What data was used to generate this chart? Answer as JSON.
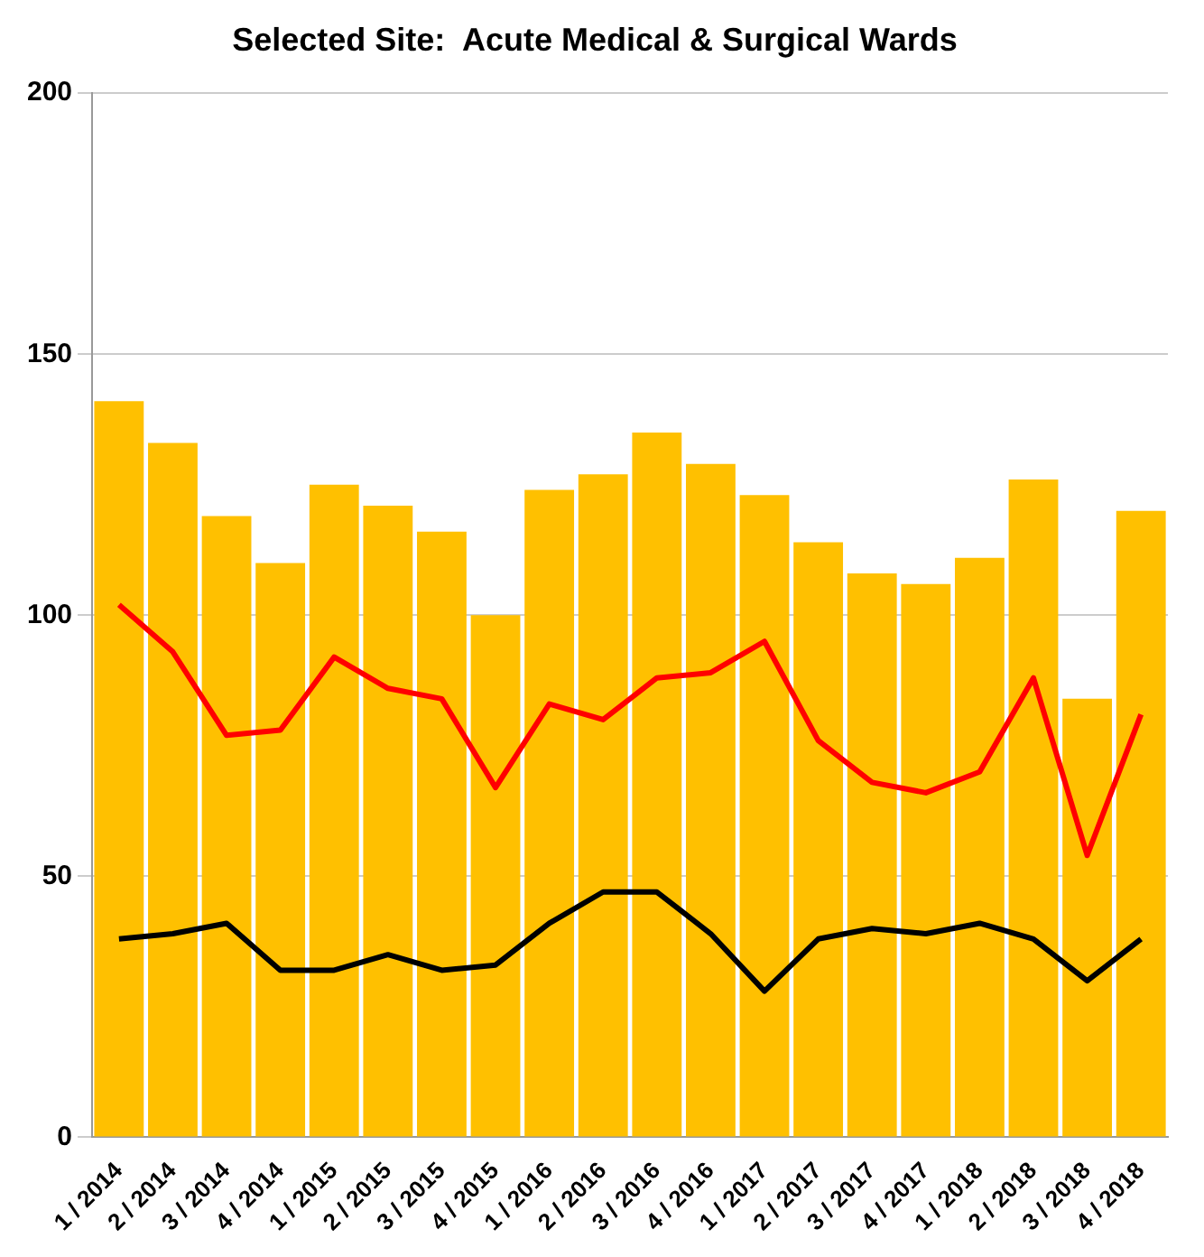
{
  "chart_data": {
    "type": "bar",
    "title": "Selected Site:  Acute Medical & Surgical Wards",
    "categories": [
      "1 / 2014",
      "2 / 2014",
      "3 / 2014",
      "4 / 2014",
      "1 / 2015",
      "2 / 2015",
      "3 / 2015",
      "4 / 2015",
      "1 / 2016",
      "2 / 2016",
      "3 / 2016",
      "4 / 2016",
      "1 / 2017",
      "2 / 2017",
      "3 / 2017",
      "4 / 2017",
      "1 / 2018",
      "2 / 2018",
      "3 / 2018",
      "4 / 2018"
    ],
    "series": [
      {
        "color": "#ffc000",
        "values": [
          141,
          133,
          119,
          110,
          125,
          121,
          116,
          100,
          124,
          127,
          135,
          129,
          123,
          114,
          108,
          106,
          111,
          126,
          84,
          120
        ]
      },
      {
        "type": "line",
        "color": "#ff0000",
        "values": [
          102,
          93,
          77,
          78,
          92,
          86,
          84,
          67,
          83,
          80,
          88,
          89,
          95,
          76,
          68,
          66,
          70,
          88,
          54,
          81
        ]
      },
      {
        "type": "line",
        "color": "#000000",
        "values": [
          38,
          39,
          41,
          32,
          32,
          35,
          32,
          33,
          41,
          47,
          47,
          39,
          28,
          38,
          40,
          39,
          41,
          38,
          30,
          38
        ]
      }
    ],
    "ylim": [
      0,
      200
    ],
    "yticks": [
      0,
      50,
      100,
      150,
      200
    ],
    "grid": "y",
    "legend": false
  }
}
